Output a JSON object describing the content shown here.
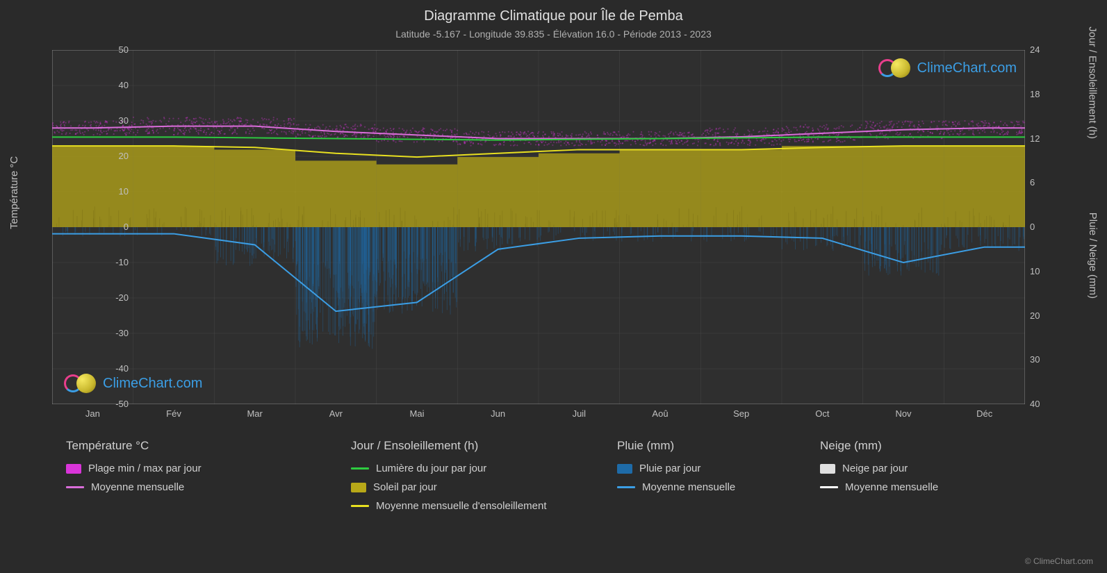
{
  "title": "Diagramme Climatique pour Île de Pemba",
  "subtitle": "Latitude -5.167 - Longitude 39.835 - Élévation 16.0 - Période 2013 - 2023",
  "copyright": "© ClimeChart.com",
  "watermark_text": "ClimeChart.com",
  "watermark_color": "#3b9ee5",
  "logo_circle_gradient": [
    "#e83e8c",
    "#3b9ee5"
  ],
  "logo_sphere_color": "#c9b82e",
  "chart": {
    "type": "multi-axis-line-area",
    "background_color": "#2a2a2a",
    "plot_background": "#2f2f2f",
    "grid_color": "#555555",
    "months": [
      "Jan",
      "Fév",
      "Mar",
      "Avr",
      "Mai",
      "Jun",
      "Juil",
      "Aoû",
      "Sep",
      "Oct",
      "Nov",
      "Déc"
    ],
    "left_axis": {
      "label": "Température °C",
      "min": -50,
      "max": 50,
      "tick_step": 10,
      "ticks": [
        50,
        40,
        30,
        20,
        10,
        0,
        -10,
        -20,
        -30,
        -40,
        -50
      ]
    },
    "right_axis_top": {
      "label": "Jour / Ensoleillement (h)",
      "min": 0,
      "max": 24,
      "tick_step": 6,
      "ticks": [
        24,
        18,
        12,
        6,
        0
      ]
    },
    "right_axis_bottom": {
      "label": "Pluie / Neige (mm)",
      "min": 0,
      "max": 40,
      "tick_step": 10,
      "ticks": [
        10,
        20,
        30,
        40
      ]
    },
    "series": {
      "temp_range": {
        "color": "#d935d9",
        "scatter_opacity": 0.35,
        "min": [
          26,
          26,
          26,
          25,
          24,
          23,
          23,
          23,
          23,
          24,
          25,
          26
        ],
        "max": [
          30,
          31,
          31,
          29,
          28,
          27,
          27,
          27,
          28,
          29,
          30,
          30
        ]
      },
      "temp_mean": {
        "color": "#d96dd9",
        "line_width": 2,
        "values": [
          28,
          28.5,
          28.5,
          27,
          26,
          25,
          25,
          25,
          25.5,
          26.5,
          27.5,
          28
        ]
      },
      "daylight": {
        "color": "#2ecc40",
        "line_width": 2,
        "values": [
          12.2,
          12.2,
          12.1,
          12.0,
          11.9,
          11.8,
          11.9,
          12.0,
          12.1,
          12.2,
          12.2,
          12.2
        ]
      },
      "sunshine_daily": {
        "color_fill": "#b8a818",
        "fill_opacity": 0.75,
        "max_values": [
          11,
          11,
          10.5,
          9,
          8.5,
          9.5,
          10,
          10.5,
          10.5,
          11,
          11,
          11
        ]
      },
      "sunshine_mean": {
        "color": "#e8e020",
        "line_width": 2,
        "values": [
          11,
          11,
          10.8,
          10,
          9.5,
          10,
          10.5,
          10.5,
          10.5,
          10.8,
          11,
          11
        ]
      },
      "rain_daily": {
        "color_fill": "#1e6ba8",
        "fill_opacity": 0.6,
        "values_band": [
          2,
          2,
          8,
          25,
          18,
          5,
          3,
          3,
          3,
          5,
          10,
          5
        ]
      },
      "rain_mean": {
        "color": "#3b9ee5",
        "line_width": 2,
        "values": [
          1.5,
          1.5,
          4,
          19,
          17,
          5,
          2.5,
          2,
          2,
          2.5,
          8,
          4.5
        ]
      },
      "snow_daily": {
        "color_fill": "#e0e0e0",
        "fill_opacity": 0.6,
        "values": [
          0,
          0,
          0,
          0,
          0,
          0,
          0,
          0,
          0,
          0,
          0,
          0
        ]
      },
      "snow_mean": {
        "color": "#ffffff",
        "line_width": 2,
        "values": [
          0,
          0,
          0,
          0,
          0,
          0,
          0,
          0,
          0,
          0,
          0,
          0
        ]
      }
    }
  },
  "legend": {
    "temperature": {
      "header": "Température °C",
      "items": [
        {
          "swatch": "#d935d9",
          "type": "block",
          "label": "Plage min / max par jour"
        },
        {
          "swatch": "#d96dd9",
          "type": "line",
          "label": "Moyenne mensuelle"
        }
      ]
    },
    "daylight": {
      "header": "Jour / Ensoleillement (h)",
      "items": [
        {
          "swatch": "#2ecc40",
          "type": "line",
          "label": "Lumière du jour par jour"
        },
        {
          "swatch": "#b8a818",
          "type": "block",
          "label": "Soleil par jour"
        },
        {
          "swatch": "#e8e020",
          "type": "line",
          "label": "Moyenne mensuelle d'ensoleillement"
        }
      ]
    },
    "rain": {
      "header": "Pluie (mm)",
      "items": [
        {
          "swatch": "#1e6ba8",
          "type": "block",
          "label": "Pluie par jour"
        },
        {
          "swatch": "#3b9ee5",
          "type": "line",
          "label": "Moyenne mensuelle"
        }
      ]
    },
    "snow": {
      "header": "Neige (mm)",
      "items": [
        {
          "swatch": "#e0e0e0",
          "type": "block",
          "label": "Neige par jour"
        },
        {
          "swatch": "#ffffff",
          "type": "line",
          "label": "Moyenne mensuelle"
        }
      ]
    }
  }
}
